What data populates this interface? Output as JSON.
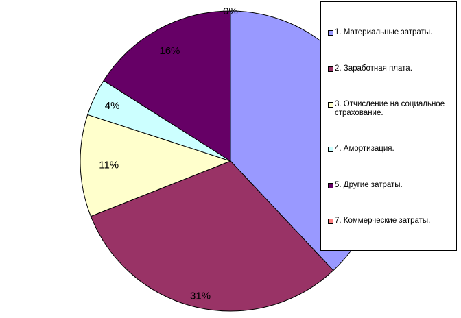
{
  "chart_data": {
    "type": "pie",
    "title": "",
    "slices": [
      {
        "name": "1. Материальные затраты.",
        "value": 38,
        "label": "",
        "color": "#9999ff"
      },
      {
        "name": "2. Заработная плата.",
        "value": 31,
        "label": "31%",
        "color": "#993366"
      },
      {
        "name": "3. Отчисление на социальное страхование.",
        "value": 11,
        "label": "11%",
        "color": "#ffffcc"
      },
      {
        "name": "4. Амортизация.",
        "value": 4,
        "label": "4%",
        "color": "#ccffff"
      },
      {
        "name": "5. Другие затраты.",
        "value": 16,
        "label": "16%",
        "color": "#660066"
      },
      {
        "name": "7. Коммерческие затраты.",
        "value": 0,
        "label": "0%",
        "color": "#ff8080"
      }
    ],
    "legend_position": "right"
  }
}
